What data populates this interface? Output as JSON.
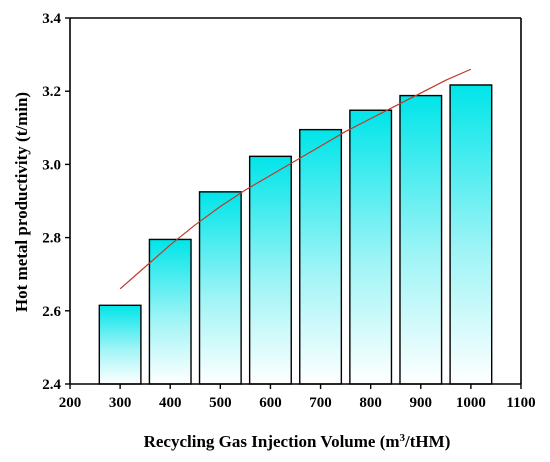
{
  "chart_data": {
    "type": "bar",
    "title": "",
    "xlabel": "Recycling Gas Injection Volume (m",
    "xlabel_sup": "3",
    "xlabel_tail": "/tHM)",
    "ylabel": "Hot metal productivity (t/min)",
    "categories": [
      300,
      400,
      500,
      600,
      700,
      800,
      900,
      1000
    ],
    "values": [
      2.615,
      2.795,
      2.925,
      3.022,
      3.095,
      3.148,
      3.188,
      3.217
    ],
    "xlim": [
      200,
      1100
    ],
    "ylim": [
      2.4,
      3.4
    ],
    "xticks": [
      200,
      300,
      400,
      500,
      600,
      700,
      800,
      900,
      1000,
      1100
    ],
    "yticks": [
      2.4,
      2.6,
      2.8,
      3.0,
      3.2,
      3.4
    ],
    "ytick_labels": [
      "2.4",
      "2.6",
      "2.8",
      "3.0",
      "3.2",
      "3.4"
    ],
    "bar_width": 83,
    "trend_line": {
      "x": [
        300,
        350,
        400,
        450,
        500,
        550,
        600,
        650,
        700,
        750,
        800,
        850,
        900,
        950,
        1000
      ],
      "y": [
        2.66,
        2.72,
        2.78,
        2.835,
        2.885,
        2.93,
        2.97,
        3.01,
        3.05,
        3.09,
        3.125,
        3.16,
        3.195,
        3.23,
        3.26
      ],
      "color": "#c0392b"
    },
    "bar_gradient": [
      "#00e5e9",
      "#ffffff"
    ],
    "grid": false,
    "legend": "none"
  }
}
